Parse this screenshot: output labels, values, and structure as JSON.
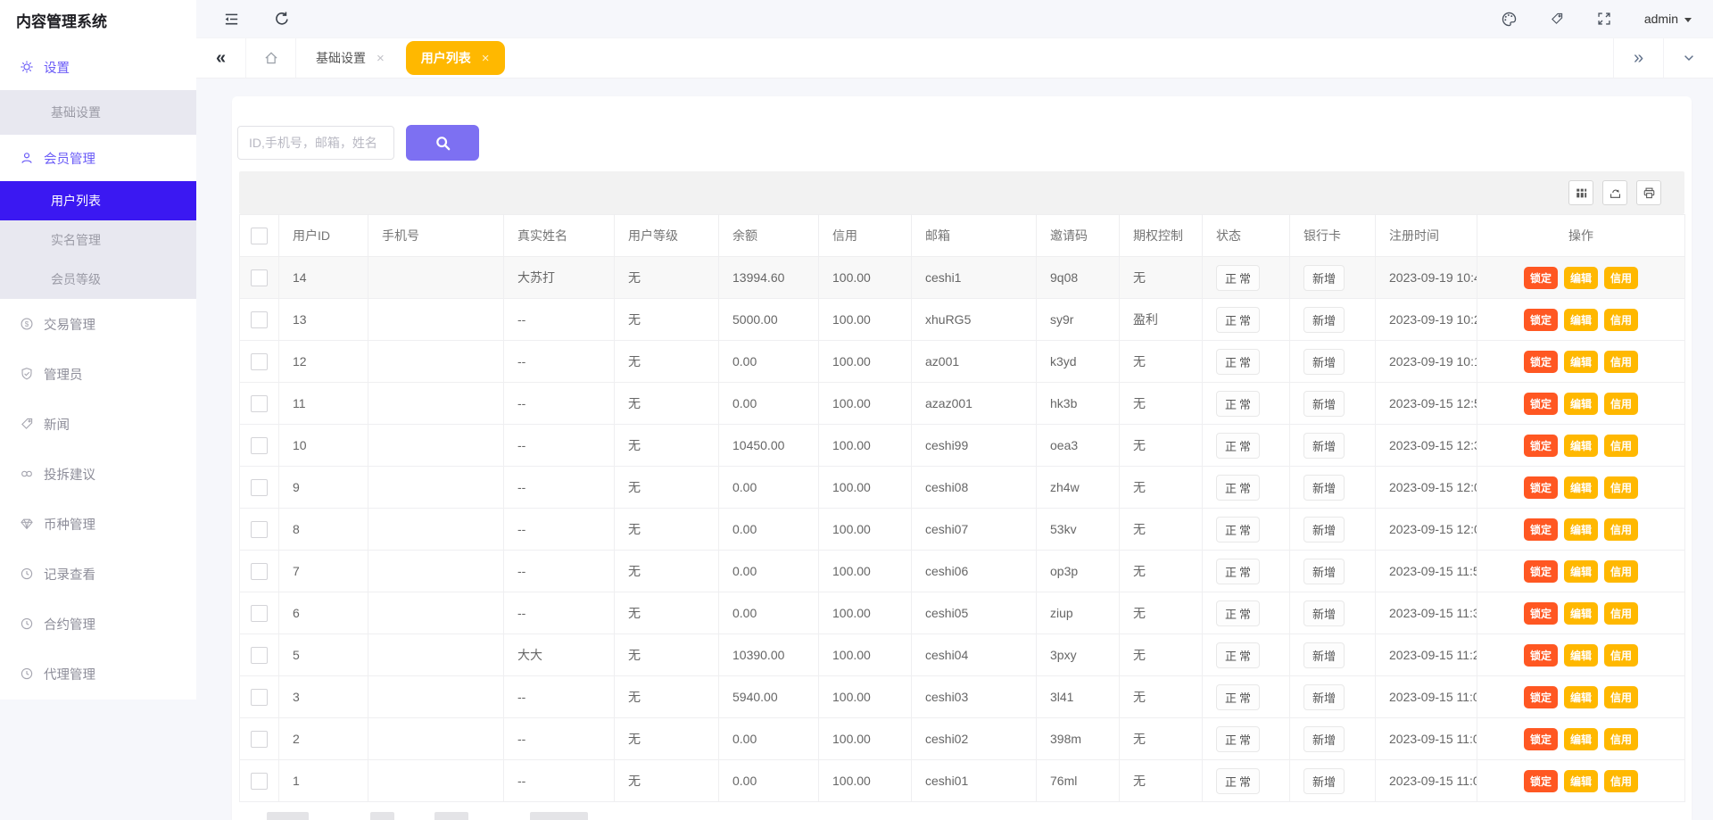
{
  "app": {
    "title": "内容管理系统"
  },
  "topbar": {
    "user": "admin"
  },
  "tabbar": {
    "tabs": [
      {
        "name": "basic-settings",
        "label": "基础设置",
        "close": "×",
        "active": false
      },
      {
        "name": "user-list",
        "label": "用户列表",
        "close": "×",
        "active": true
      }
    ]
  },
  "sidebar": {
    "items": [
      {
        "name": "settings",
        "label": "设置",
        "icon": "gear",
        "type": "parent",
        "state": "open"
      },
      {
        "name": "basic-settings",
        "label": "基础设置",
        "type": "child",
        "state": "normal"
      },
      {
        "name": "member-management",
        "label": "会员管理",
        "icon": "user",
        "type": "parent",
        "state": "open"
      },
      {
        "name": "user-list",
        "label": "用户列表",
        "type": "child",
        "state": "active"
      },
      {
        "name": "real-name-management",
        "label": "实名管理",
        "type": "child",
        "state": "normal"
      },
      {
        "name": "member-level",
        "label": "会员等级",
        "type": "child",
        "state": "normal"
      },
      {
        "name": "transaction-management",
        "label": "交易管理",
        "icon": "dollar-circle",
        "type": "parent",
        "state": "closed"
      },
      {
        "name": "administrator",
        "label": "管理员",
        "icon": "shield-check",
        "type": "parent",
        "state": "closed"
      },
      {
        "name": "news",
        "label": "新闻",
        "icon": "tag",
        "type": "parent",
        "state": "closed"
      },
      {
        "name": "feedback",
        "label": "投拆建议",
        "icon": "link",
        "type": "parent",
        "state": "closed"
      },
      {
        "name": "currency-management",
        "label": "币种管理",
        "icon": "gem",
        "type": "parent",
        "state": "closed"
      },
      {
        "name": "record-view",
        "label": "记录查看",
        "icon": "history",
        "type": "parent",
        "state": "closed"
      },
      {
        "name": "contract-management",
        "label": "合约管理",
        "icon": "history",
        "type": "parent",
        "state": "closed"
      },
      {
        "name": "agent-management",
        "label": "代理管理",
        "icon": "history",
        "type": "parent",
        "state": "closed"
      }
    ]
  },
  "search": {
    "placeholder": "ID,手机号，邮箱，姓名"
  },
  "toolbar": {
    "buttons": [
      "filter-columns",
      "export",
      "print"
    ]
  },
  "table": {
    "columns": [
      "",
      "用户ID",
      "手机号",
      "真实姓名",
      "用户等级",
      "余额",
      "信用",
      "邮箱",
      "邀请码",
      "期权控制",
      "状态",
      "银行卡",
      "注册时间",
      "操作"
    ],
    "action_labels": {
      "lock": "锁定",
      "edit": "编辑",
      "credit": "信用"
    },
    "rows": [
      {
        "id": "14",
        "phone": "",
        "real_name": "大苏打",
        "level": "无",
        "balance": "13994.60",
        "credit": "100.00",
        "email": "ceshi1",
        "invite_code": "9q08",
        "option_control": "无",
        "status": "正常",
        "bank_card": "新增",
        "reg_time": "2023-09-19 10:4",
        "highlighted": true
      },
      {
        "id": "13",
        "phone": "",
        "real_name": "--",
        "level": "无",
        "balance": "5000.00",
        "credit": "100.00",
        "email": "xhuRG5",
        "invite_code": "sy9r",
        "option_control": "盈利",
        "status": "正常",
        "bank_card": "新增",
        "reg_time": "2023-09-19 10:2",
        "highlighted": false
      },
      {
        "id": "12",
        "phone": "",
        "real_name": "--",
        "level": "无",
        "balance": "0.00",
        "credit": "100.00",
        "email": "az001",
        "invite_code": "k3yd",
        "option_control": "无",
        "status": "正常",
        "bank_card": "新增",
        "reg_time": "2023-09-19 10:1",
        "highlighted": false
      },
      {
        "id": "11",
        "phone": "",
        "real_name": "--",
        "level": "无",
        "balance": "0.00",
        "credit": "100.00",
        "email": "azaz001",
        "invite_code": "hk3b",
        "option_control": "无",
        "status": "正常",
        "bank_card": "新增",
        "reg_time": "2023-09-15 12:5",
        "highlighted": false
      },
      {
        "id": "10",
        "phone": "",
        "real_name": "--",
        "level": "无",
        "balance": "10450.00",
        "credit": "100.00",
        "email": "ceshi99",
        "invite_code": "oea3",
        "option_control": "无",
        "status": "正常",
        "bank_card": "新增",
        "reg_time": "2023-09-15 12:3",
        "highlighted": false
      },
      {
        "id": "9",
        "phone": "",
        "real_name": "--",
        "level": "无",
        "balance": "0.00",
        "credit": "100.00",
        "email": "ceshi08",
        "invite_code": "zh4w",
        "option_control": "无",
        "status": "正常",
        "bank_card": "新增",
        "reg_time": "2023-09-15 12:0",
        "highlighted": false
      },
      {
        "id": "8",
        "phone": "",
        "real_name": "--",
        "level": "无",
        "balance": "0.00",
        "credit": "100.00",
        "email": "ceshi07",
        "invite_code": "53kv",
        "option_control": "无",
        "status": "正常",
        "bank_card": "新增",
        "reg_time": "2023-09-15 12:0",
        "highlighted": false
      },
      {
        "id": "7",
        "phone": "",
        "real_name": "--",
        "level": "无",
        "balance": "0.00",
        "credit": "100.00",
        "email": "ceshi06",
        "invite_code": "op3p",
        "option_control": "无",
        "status": "正常",
        "bank_card": "新增",
        "reg_time": "2023-09-15 11:5",
        "highlighted": false
      },
      {
        "id": "6",
        "phone": "",
        "real_name": "--",
        "level": "无",
        "balance": "0.00",
        "credit": "100.00",
        "email": "ceshi05",
        "invite_code": "ziup",
        "option_control": "无",
        "status": "正常",
        "bank_card": "新增",
        "reg_time": "2023-09-15 11:3",
        "highlighted": false
      },
      {
        "id": "5",
        "phone": "",
        "real_name": "大大",
        "level": "无",
        "balance": "10390.00",
        "credit": "100.00",
        "email": "ceshi04",
        "invite_code": "3pxy",
        "option_control": "无",
        "status": "正常",
        "bank_card": "新增",
        "reg_time": "2023-09-15 11:2",
        "highlighted": false
      },
      {
        "id": "3",
        "phone": "",
        "real_name": "--",
        "level": "无",
        "balance": "5940.00",
        "credit": "100.00",
        "email": "ceshi03",
        "invite_code": "3l41",
        "option_control": "无",
        "status": "正常",
        "bank_card": "新增",
        "reg_time": "2023-09-15 11:0",
        "highlighted": false
      },
      {
        "id": "2",
        "phone": "",
        "real_name": "--",
        "level": "无",
        "balance": "0.00",
        "credit": "100.00",
        "email": "ceshi02",
        "invite_code": "398m",
        "option_control": "无",
        "status": "正常",
        "bank_card": "新增",
        "reg_time": "2023-09-15 11:0",
        "highlighted": false
      },
      {
        "id": "1",
        "phone": "",
        "real_name": "--",
        "level": "无",
        "balance": "0.00",
        "credit": "100.00",
        "email": "ceshi01",
        "invite_code": "76ml",
        "option_control": "无",
        "status": "正常",
        "bank_card": "新增",
        "reg_time": "2023-09-15 11:0",
        "highlighted": false
      }
    ]
  },
  "colors": {
    "sidebar_active_bg": "#3b18f2",
    "menu_open_text": "#6a5bf7",
    "tab_active_bg": "#ffb800",
    "search_button_bg": "#7d70f2",
    "lock_button_bg": "#ff5722",
    "edit_button_bg": "#ffb800",
    "credit_button_bg": "#ffb800"
  }
}
